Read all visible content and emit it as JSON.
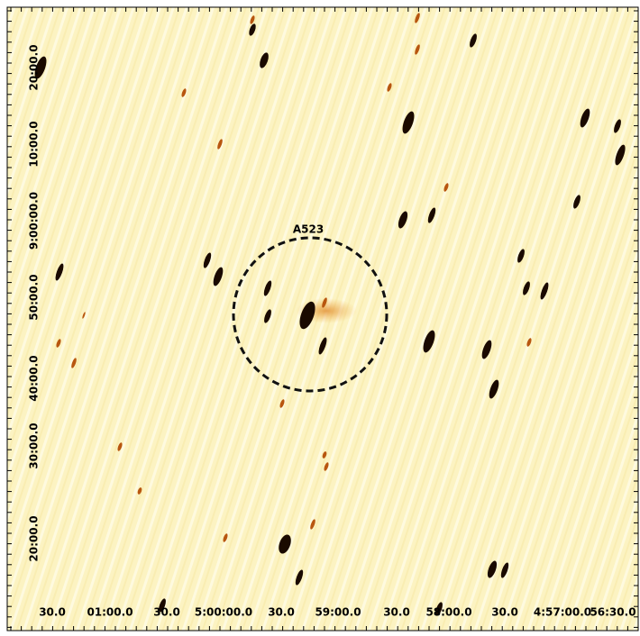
{
  "image": {
    "annotation": "A523",
    "x_tick_labels": [
      "30.0",
      "01:00.0",
      "30.0",
      "5:00:00.0",
      "30.0",
      "59:00.0",
      "30.0",
      "58:00.0",
      "30.0",
      "4:57:00.0",
      "56:30.0"
    ],
    "y_tick_labels": [
      "20:00.0",
      "30:00.0",
      "40:00.0",
      "50:00.0",
      "9:00:00.0",
      "10:00.0",
      "20:00.0"
    ]
  }
}
